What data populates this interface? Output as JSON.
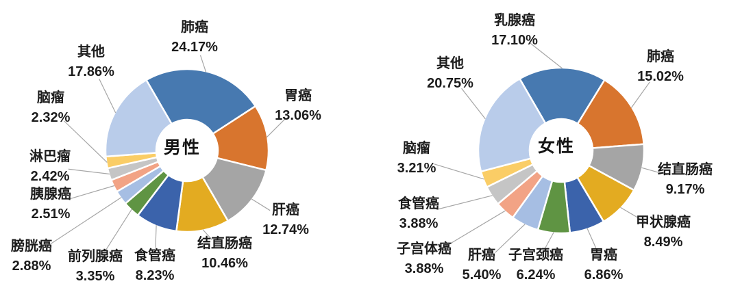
{
  "figure": {
    "background": "#ffffff",
    "text_color": "#1c1c1c",
    "leader_line_color": "#a6a6a6",
    "slice_gap_color": "#ffffff"
  },
  "chart_data": [
    {
      "type": "pie",
      "id": "male",
      "donut": true,
      "title": "男性",
      "start_angle_deg": -30,
      "legend_position": "none",
      "unit": "%",
      "labels": [
        "肺癌",
        "胃癌",
        "肝癌",
        "结直肠癌",
        "食管癌",
        "前列腺癌",
        "膀胱癌",
        "胰腺癌",
        "淋巴瘤",
        "脑瘤",
        "其他"
      ],
      "values": [
        24.17,
        13.06,
        12.74,
        10.46,
        8.23,
        3.35,
        2.88,
        2.51,
        2.42,
        2.32,
        17.86
      ],
      "value_labels": [
        "24.17%",
        "13.06%",
        "12.74%",
        "10.46%",
        "8.23%",
        "3.35%",
        "2.88%",
        "2.51%",
        "2.42%",
        "2.32%",
        "17.86%"
      ],
      "colors": [
        "#4779b0",
        "#d8752e",
        "#a5a5a5",
        "#e3ab21",
        "#3b63ab",
        "#5f9443",
        "#a6bee3",
        "#f2a385",
        "#c5c5c5",
        "#facd66",
        "#b9ccea"
      ]
    },
    {
      "type": "pie",
      "id": "female",
      "donut": true,
      "title": "女性",
      "start_angle_deg": -30,
      "legend_position": "none",
      "unit": "%",
      "labels": [
        "乳腺癌",
        "肺癌",
        "结直肠癌",
        "甲状腺癌",
        "胃癌",
        "子宫颈癌",
        "肝癌",
        "子宫体癌",
        "食管癌",
        "脑瘤",
        "其他"
      ],
      "values": [
        17.1,
        15.02,
        9.17,
        8.49,
        6.86,
        6.24,
        5.4,
        3.88,
        3.88,
        3.21,
        20.75
      ],
      "value_labels": [
        "17.10%",
        "15.02%",
        "9.17%",
        "8.49%",
        "6.86%",
        "6.24%",
        "5.40%",
        "3.88%",
        "3.88%",
        "3.21%",
        "20.75%"
      ],
      "colors": [
        "#4779b0",
        "#d8752e",
        "#a5a5a5",
        "#e3ab21",
        "#3b63ab",
        "#5f9443",
        "#a6bee3",
        "#f2a385",
        "#c5c5c5",
        "#facd66",
        "#b9ccea"
      ]
    }
  ]
}
